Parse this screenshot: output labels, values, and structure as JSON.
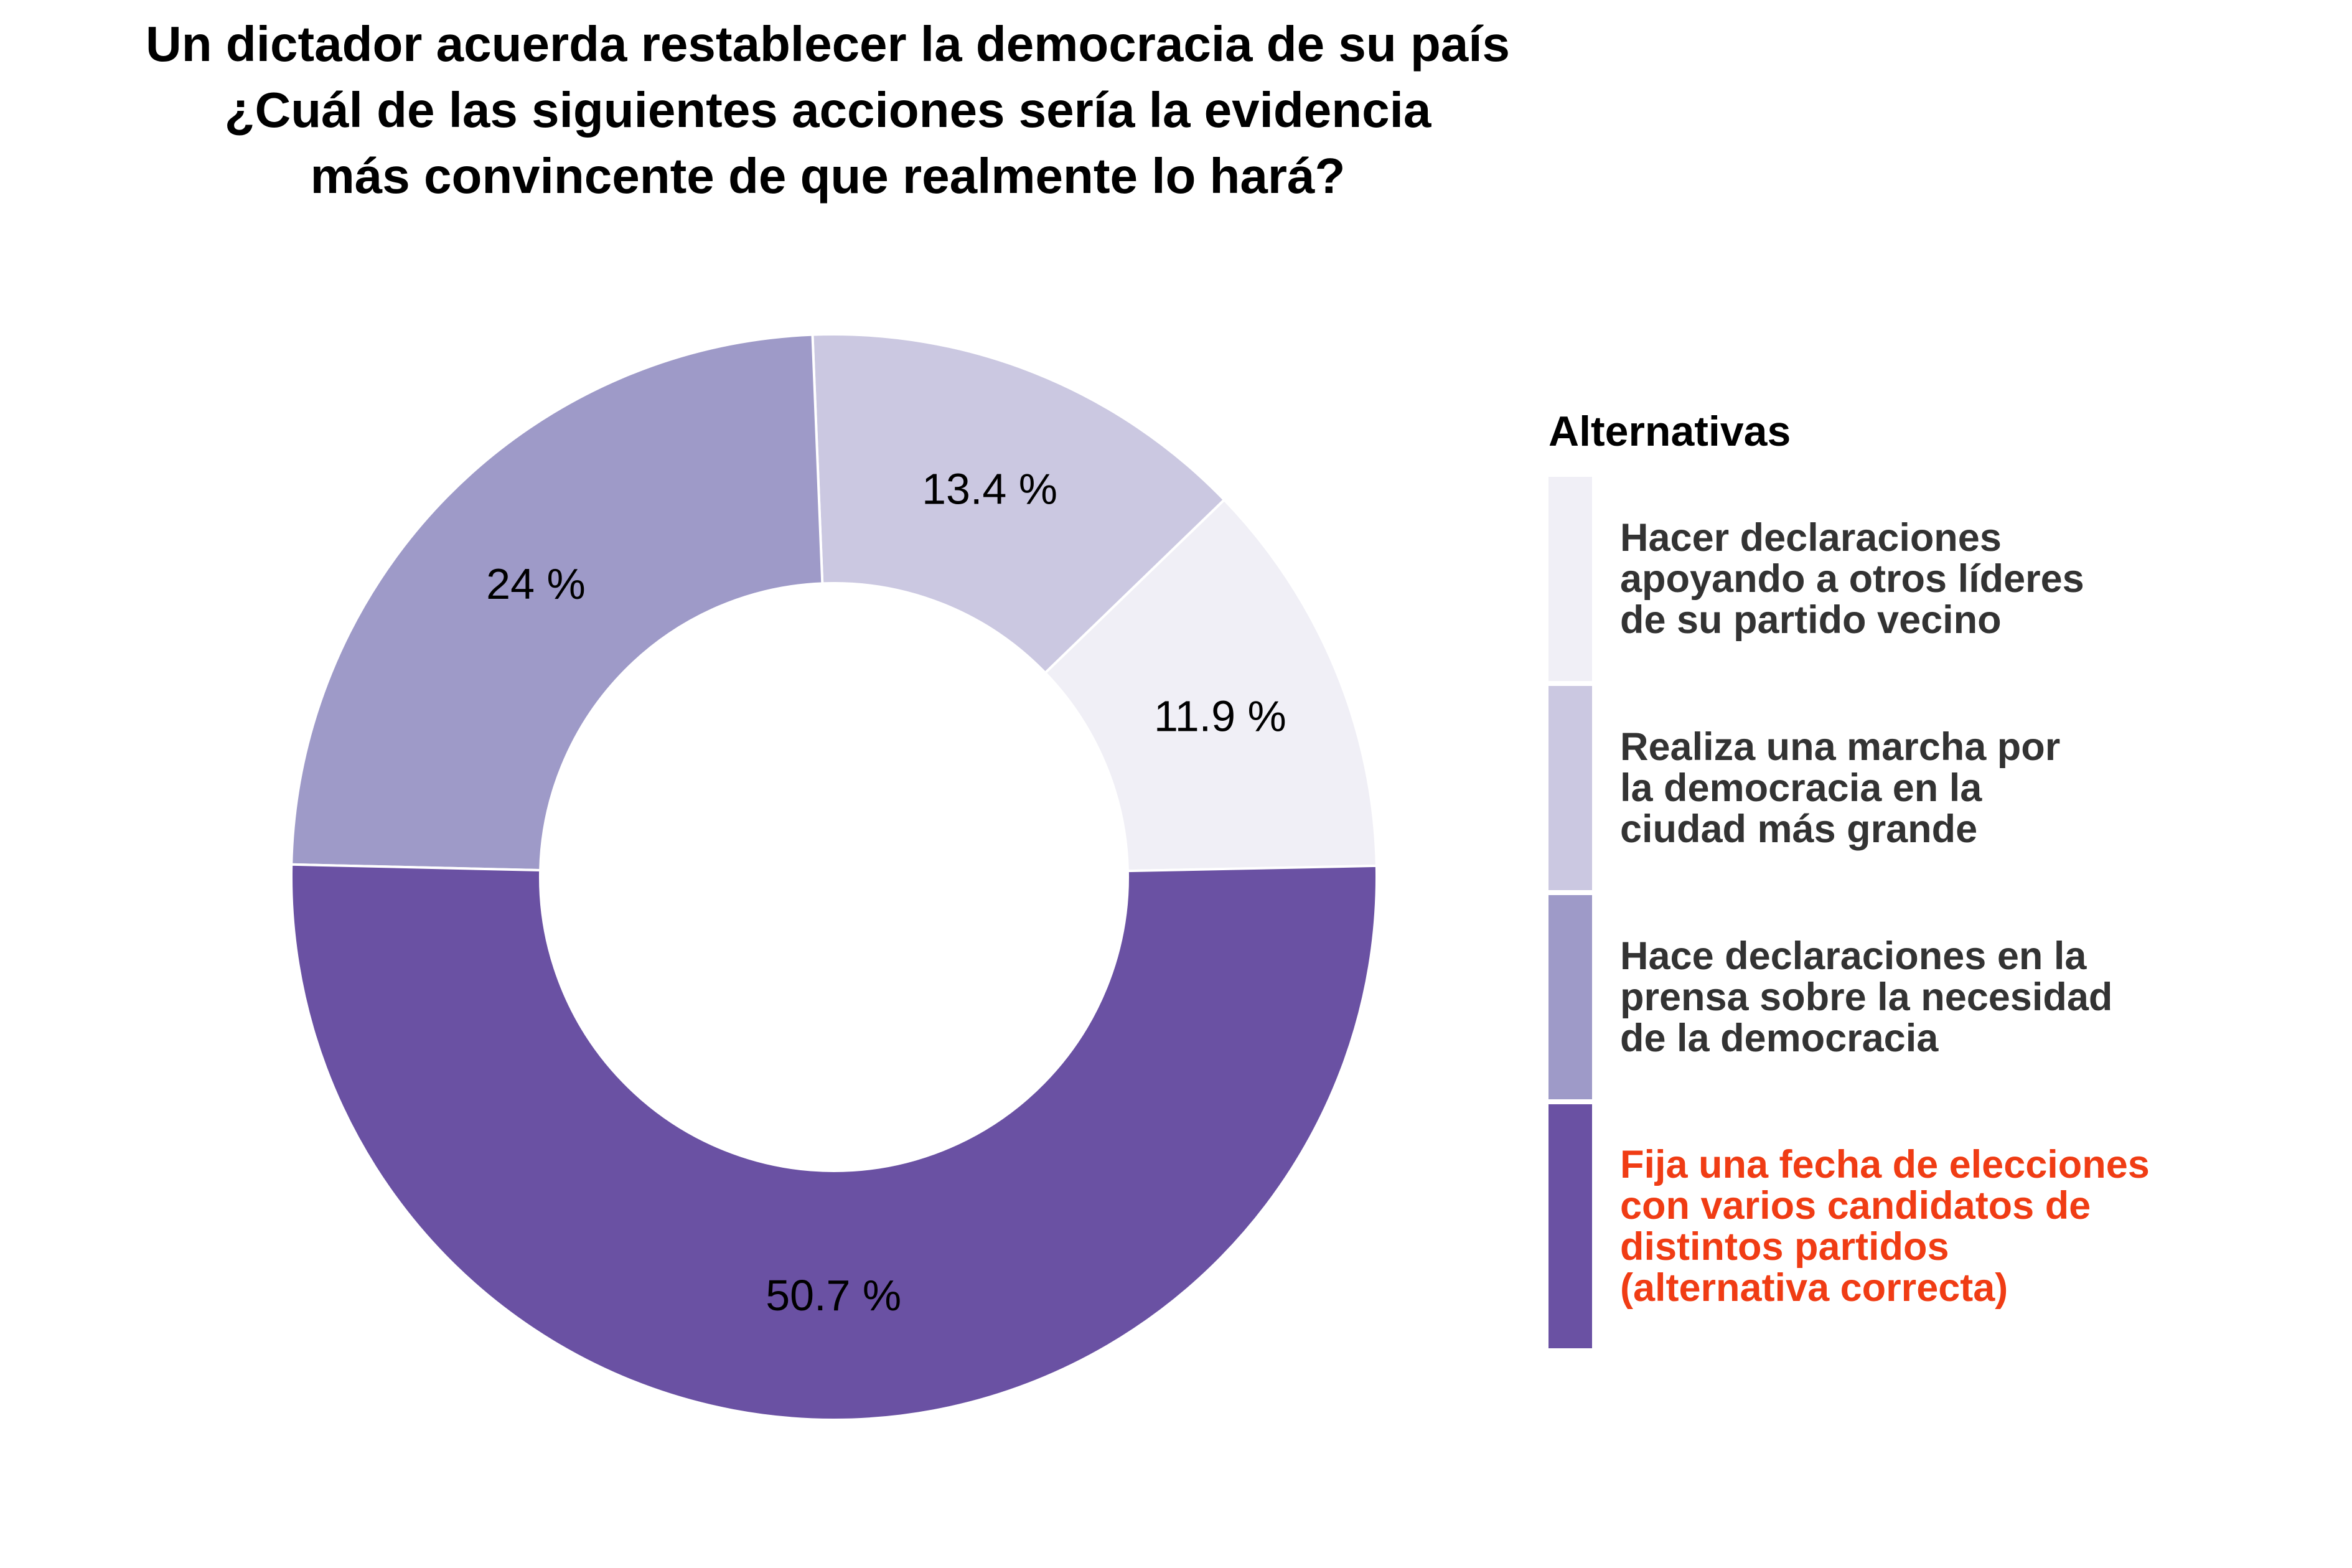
{
  "chart_data": {
    "type": "pie",
    "donut": true,
    "title_lines": [
      "Un dictador acuerda restablecer la democracia de su país",
      "¿Cuál de las siguientes acciones sería la evidencia",
      "más convincente de que realmente lo hará?"
    ],
    "legend_title": "Alternativas",
    "legend_position": "right",
    "slices": [
      {
        "label_lines": [
          "Hacer declaraciones",
          "apoyando a otros líderes",
          "de su partido vecino"
        ],
        "value": 11.9,
        "value_label": "11.9 %",
        "color": "#F0EFF6",
        "text_color": "#333333"
      },
      {
        "label_lines": [
          "Realiza una marcha por",
          "la democracia en la",
          "ciudad más grande"
        ],
        "value": 13.4,
        "value_label": "13.4 %",
        "color": "#CBC8E1",
        "text_color": "#333333"
      },
      {
        "label_lines": [
          "Hace declaraciones en la",
          "prensa sobre la necesidad",
          "de la democracia"
        ],
        "value": 24,
        "value_label": "24 %",
        "color": "#9E9AC8",
        "text_color": "#333333"
      },
      {
        "label_lines": [
          "Fija una fecha de elecciones",
          "con varios candidatos de",
          "distintos partidos",
          "(alternativa correcta)"
        ],
        "value": 50.7,
        "value_label": "50.7 %",
        "color": "#6A51A3",
        "text_color": "#F03C14"
      }
    ]
  }
}
